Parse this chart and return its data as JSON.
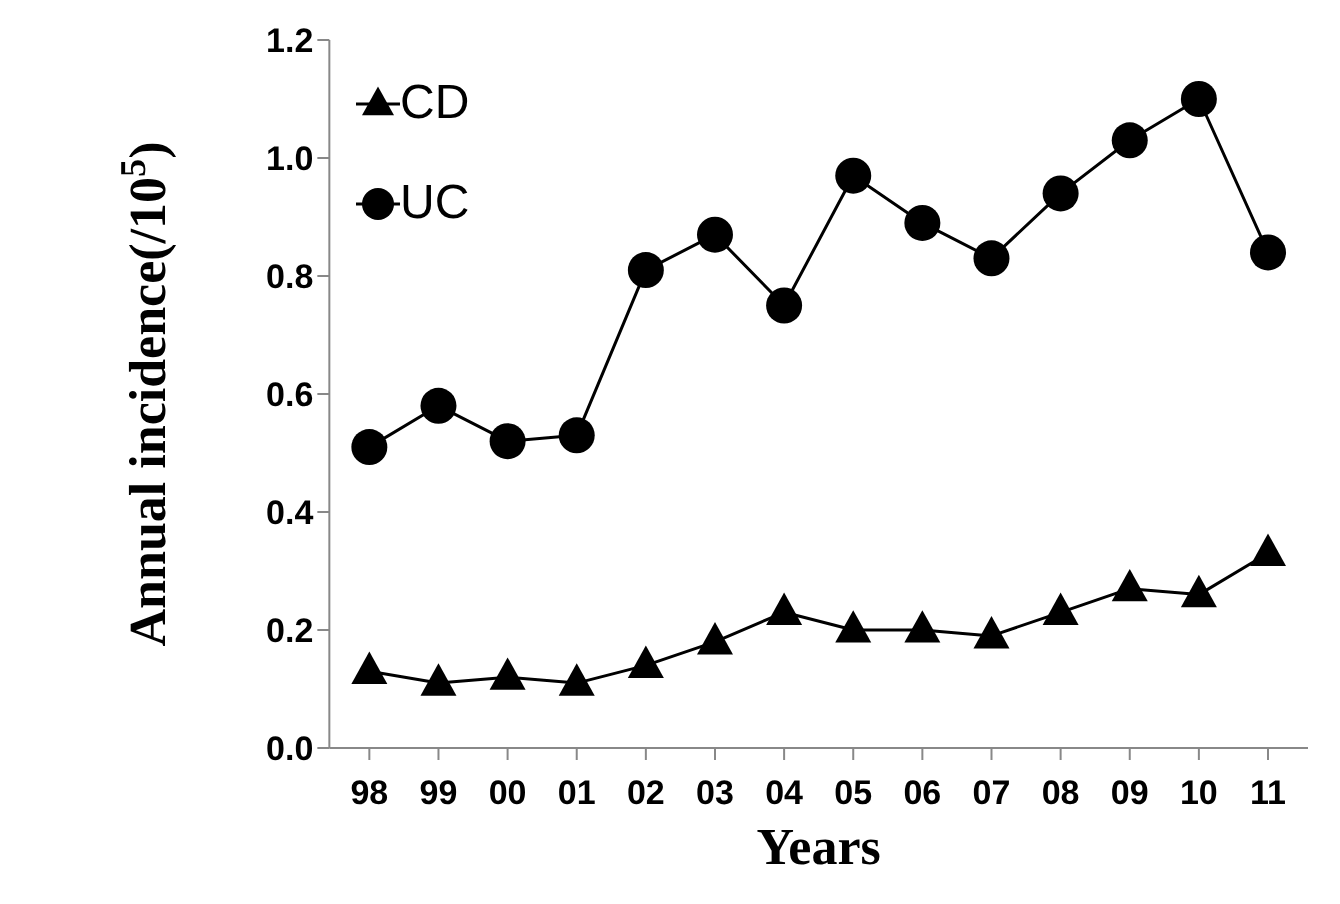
{
  "chart_data": {
    "type": "line",
    "xlabel": "Years",
    "ylabel": "Annual incidence(/10$^{5}$)",
    "categories": [
      "98",
      "99",
      "00",
      "01",
      "02",
      "03",
      "04",
      "05",
      "06",
      "07",
      "08",
      "09",
      "10",
      "11"
    ],
    "series": [
      {
        "name": "CD",
        "color": "#000000",
        "marker": "triangle",
        "values": [
          0.13,
          0.11,
          0.12,
          0.11,
          0.14,
          0.18,
          0.23,
          0.2,
          0.2,
          0.19,
          0.23,
          0.27,
          0.26,
          0.33
        ]
      },
      {
        "name": "UC",
        "color": "#000000",
        "marker": "circle",
        "values": [
          0.51,
          0.58,
          0.52,
          0.53,
          0.81,
          0.87,
          0.75,
          0.97,
          0.89,
          0.83,
          0.94,
          1.03,
          1.1,
          0.84
        ]
      }
    ],
    "ylim": [
      0,
      1.2
    ],
    "yticks": [
      {
        "value": 0,
        "label": "0.0"
      },
      {
        "value": 0.2,
        "label": "0.2"
      },
      {
        "value": 0.4,
        "label": "0.4"
      },
      {
        "value": 0.6,
        "label": "0.6"
      },
      {
        "value": 0.8,
        "label": "0.8"
      },
      {
        "value": 1,
        "label": "1.0"
      },
      {
        "value": 1.2,
        "label": "1.2"
      }
    ],
    "grid": false,
    "legend": "top left",
    "line_style": "solid"
  }
}
